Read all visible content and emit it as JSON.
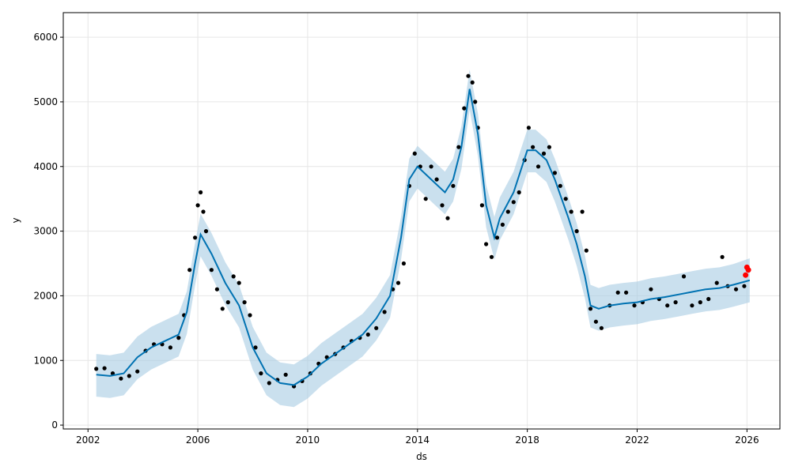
{
  "chart_data": {
    "type": "line",
    "xlabel": "ds",
    "ylabel": "y",
    "xlim": [
      2001.1,
      2027.2
    ],
    "ylim": [
      -60,
      6380
    ],
    "x_ticks": [
      2002,
      2006,
      2010,
      2014,
      2018,
      2022,
      2026
    ],
    "x_tick_labels": [
      "2002",
      "2006",
      "2010",
      "2014",
      "2018",
      "2022",
      "2026"
    ],
    "y_ticks": [
      0,
      1000,
      2000,
      3000,
      4000,
      5000,
      6000
    ],
    "y_tick_labels": [
      "0",
      "1000",
      "2000",
      "3000",
      "4000",
      "5000",
      "6000"
    ],
    "grid": true,
    "colors": {
      "forecast_line": "#0072B2",
      "interval_band": "#a6cbe3",
      "observed_points": "#000000",
      "highlight_points": "#ff0000",
      "grid": "#e6e6e6"
    },
    "series": [
      {
        "kind": "forecast",
        "x": [
          2002.3,
          2002.8,
          2003.3,
          2003.8,
          2004.3,
          2004.8,
          2005.3,
          2005.6,
          2005.9,
          2006.1,
          2006.5,
          2007.0,
          2007.5,
          2008.0,
          2008.5,
          2009.0,
          2009.5,
          2010.0,
          2010.5,
          2011.0,
          2011.5,
          2012.0,
          2012.5,
          2013.0,
          2013.4,
          2013.7,
          2014.0,
          2014.5,
          2015.0,
          2015.3,
          2015.6,
          2015.9,
          2016.2,
          2016.5,
          2016.8,
          2017.0,
          2017.5,
          2018.0,
          2018.3,
          2018.7,
          2019.0,
          2019.5,
          2019.8,
          2020.1,
          2020.3,
          2020.6,
          2021.0,
          2021.5,
          2022.0,
          2022.5,
          2023.0,
          2023.5,
          2024.0,
          2024.5,
          2025.0,
          2025.5,
          2026.1
        ],
        "y": [
          780,
          760,
          800,
          1050,
          1200,
          1300,
          1400,
          1750,
          2500,
          2950,
          2650,
          2200,
          1850,
          1200,
          800,
          650,
          620,
          750,
          950,
          1100,
          1250,
          1400,
          1650,
          2000,
          2900,
          3800,
          4000,
          3800,
          3600,
          3800,
          4300,
          5200,
          4500,
          3400,
          2900,
          3200,
          3600,
          4250,
          4250,
          4100,
          3800,
          3200,
          2800,
          2300,
          1850,
          1800,
          1850,
          1880,
          1900,
          1950,
          1980,
          2020,
          2060,
          2100,
          2120,
          2170,
          2240
        ]
      },
      {
        "kind": "interval",
        "x": [
          2002.3,
          2002.8,
          2003.3,
          2003.8,
          2004.3,
          2004.8,
          2005.3,
          2005.6,
          2005.9,
          2006.1,
          2006.5,
          2007.0,
          2007.5,
          2008.0,
          2008.5,
          2009.0,
          2009.5,
          2010.0,
          2010.5,
          2011.0,
          2011.5,
          2012.0,
          2012.5,
          2013.0,
          2013.4,
          2013.7,
          2014.0,
          2014.5,
          2015.0,
          2015.3,
          2015.6,
          2015.9,
          2016.2,
          2016.5,
          2016.8,
          2017.0,
          2017.5,
          2018.0,
          2018.3,
          2018.7,
          2019.0,
          2019.5,
          2019.8,
          2020.1,
          2020.3,
          2020.6,
          2021.0,
          2021.5,
          2022.0,
          2022.5,
          2023.0,
          2023.5,
          2024.0,
          2024.5,
          2025.0,
          2025.5,
          2026.1
        ],
        "upper": [
          1100,
          1080,
          1120,
          1370,
          1520,
          1620,
          1720,
          2070,
          2820,
          3270,
          2970,
          2520,
          2170,
          1520,
          1120,
          970,
          940,
          1070,
          1270,
          1420,
          1570,
          1720,
          1970,
          2320,
          3220,
          4120,
          4320,
          4120,
          3920,
          4120,
          4620,
          5500,
          4820,
          3720,
          3220,
          3520,
          3920,
          4570,
          4570,
          4420,
          4120,
          3520,
          3120,
          2620,
          2170,
          2120,
          2170,
          2200,
          2220,
          2270,
          2300,
          2340,
          2380,
          2420,
          2440,
          2490,
          2580
        ],
        "lower": [
          440,
          420,
          460,
          710,
          860,
          960,
          1060,
          1410,
          2160,
          2610,
          2310,
          1860,
          1510,
          860,
          460,
          310,
          280,
          410,
          610,
          760,
          910,
          1060,
          1310,
          1660,
          2560,
          3460,
          3660,
          3460,
          3260,
          3460,
          3960,
          4880,
          4160,
          3060,
          2560,
          2860,
          3260,
          3910,
          3910,
          3760,
          3460,
          2860,
          2460,
          1960,
          1510,
          1460,
          1510,
          1540,
          1560,
          1610,
          1640,
          1680,
          1720,
          1760,
          1780,
          1830,
          1900
        ]
      },
      {
        "kind": "observed",
        "x": [
          2002.3,
          2002.6,
          2002.9,
          2003.2,
          2003.5,
          2003.8,
          2004.1,
          2004.4,
          2004.7,
          2005.0,
          2005.3,
          2005.5,
          2005.7,
          2005.9,
          2006.0,
          2006.1,
          2006.2,
          2006.3,
          2006.5,
          2006.7,
          2006.9,
          2007.1,
          2007.3,
          2007.5,
          2007.7,
          2007.9,
          2008.1,
          2008.3,
          2008.6,
          2008.9,
          2009.2,
          2009.5,
          2009.8,
          2010.1,
          2010.4,
          2010.7,
          2011.0,
          2011.3,
          2011.6,
          2011.9,
          2012.2,
          2012.5,
          2012.8,
          2013.1,
          2013.3,
          2013.5,
          2013.7,
          2013.9,
          2014.1,
          2014.3,
          2014.5,
          2014.7,
          2014.9,
          2015.1,
          2015.3,
          2015.5,
          2015.7,
          2015.85,
          2016.0,
          2016.1,
          2016.2,
          2016.35,
          2016.5,
          2016.7,
          2016.9,
          2017.1,
          2017.3,
          2017.5,
          2017.7,
          2017.9,
          2018.05,
          2018.2,
          2018.4,
          2018.6,
          2018.8,
          2019.0,
          2019.2,
          2019.4,
          2019.6,
          2019.8,
          2020.0,
          2020.15,
          2020.3,
          2020.5,
          2020.7,
          2021.0,
          2021.3,
          2021.6,
          2021.9,
          2022.2,
          2022.5,
          2022.8,
          2023.1,
          2023.4,
          2023.7,
          2024.0,
          2024.3,
          2024.6,
          2024.9,
          2025.1,
          2025.3,
          2025.6,
          2025.9
        ],
        "y": [
          870,
          880,
          800,
          720,
          760,
          830,
          1150,
          1250,
          1250,
          1200,
          1350,
          1700,
          2400,
          2900,
          3400,
          3600,
          3300,
          3000,
          2400,
          2100,
          1800,
          1900,
          2300,
          2200,
          1900,
          1700,
          1200,
          800,
          650,
          700,
          780,
          600,
          680,
          800,
          950,
          1050,
          1100,
          1200,
          1300,
          1350,
          1400,
          1500,
          1750,
          2100,
          2200,
          2500,
          3700,
          4200,
          4000,
          3500,
          4000,
          3800,
          3400,
          3200,
          3700,
          4300,
          4900,
          5400,
          5300,
          5000,
          4600,
          3400,
          2800,
          2600,
          2900,
          3100,
          3300,
          3450,
          3600,
          4100,
          4600,
          4300,
          4000,
          4200,
          4300,
          3900,
          3700,
          3500,
          3300,
          3000,
          3300,
          2700,
          1800,
          1600,
          1500,
          1850,
          2050,
          2050,
          1850,
          1900,
          2100,
          1950,
          1850,
          1900,
          2300,
          1850,
          1900,
          1950,
          2200,
          2600,
          2150,
          2100,
          2150
        ]
      },
      {
        "kind": "highlight",
        "x": [
          2025.95,
          2026.0,
          2026.05
        ],
        "y": [
          2320,
          2440,
          2400
        ]
      }
    ]
  }
}
